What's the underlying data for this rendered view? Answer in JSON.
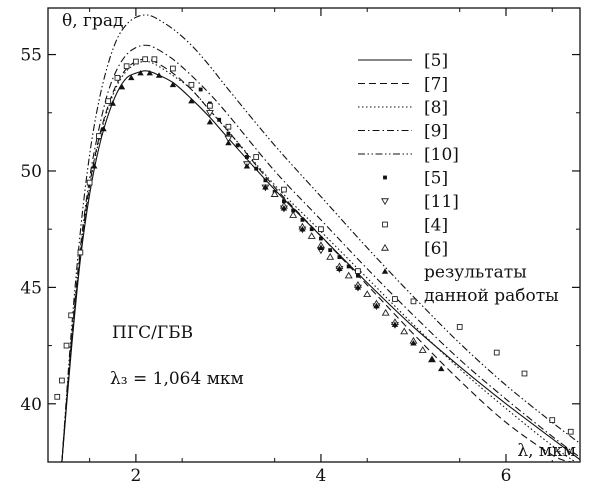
{
  "chart_data": {
    "type": "line",
    "ylabel": "θ, град",
    "xlabel": "λ, мкм",
    "xlim": [
      1.05,
      6.8
    ],
    "ylim": [
      37.5,
      57.0
    ],
    "x_ticks": [
      2,
      4,
      6
    ],
    "y_ticks": [
      40,
      45,
      50,
      55
    ],
    "x_tick_labels": [
      "2",
      "4",
      "6"
    ],
    "y_tick_labels": [
      "40",
      "45",
      "50",
      "55"
    ],
    "grid": false,
    "legend_position": "top-right",
    "annotations": [
      "ПГС/ГБВ",
      "λ₃ = 1,064 мкм"
    ],
    "series": [
      {
        "name": "[5]",
        "kind": "line",
        "dash": "solid",
        "x": [
          1.2,
          1.3,
          1.4,
          1.5,
          1.6,
          1.7,
          1.8,
          1.9,
          2.0,
          2.1,
          2.2,
          2.4,
          2.6,
          2.8,
          3.0,
          3.5,
          4.0,
          4.5,
          5.0,
          5.5,
          6.0,
          6.5,
          6.8
        ],
        "y": [
          37.5,
          42.2,
          46.2,
          49.0,
          51.0,
          52.4,
          53.4,
          54.0,
          54.2,
          54.3,
          54.2,
          53.8,
          53.1,
          52.3,
          51.4,
          49.2,
          47.2,
          45.2,
          43.3,
          41.6,
          40.0,
          38.5,
          37.6
        ]
      },
      {
        "name": "[7]",
        "kind": "line",
        "dash": "dashed",
        "x": [
          1.2,
          1.3,
          1.4,
          1.5,
          1.6,
          1.7,
          1.8,
          1.9,
          2.0,
          2.1,
          2.2,
          2.4,
          2.6,
          2.8,
          3.0,
          3.5,
          4.0,
          4.5,
          5.0,
          5.5,
          6.0,
          6.5,
          6.7
        ],
        "y": [
          37.5,
          42.5,
          46.5,
          49.4,
          51.4,
          52.8,
          53.8,
          54.4,
          54.7,
          54.8,
          54.7,
          54.2,
          53.5,
          52.6,
          51.7,
          49.3,
          47.2,
          45.1,
          43.0,
          41.0,
          39.2,
          37.8,
          37.5
        ]
      },
      {
        "name": "[8]",
        "kind": "line",
        "dash": "dotted",
        "x": [
          1.2,
          1.3,
          1.4,
          1.5,
          1.6,
          1.7,
          1.8,
          1.9,
          2.0,
          2.1,
          2.2,
          2.4,
          2.6,
          2.8,
          3.0,
          3.5,
          4.0,
          4.5,
          5.0,
          5.5,
          6.0,
          6.5,
          6.75
        ],
        "y": [
          37.5,
          42.4,
          46.4,
          49.3,
          51.3,
          52.7,
          53.7,
          54.3,
          54.6,
          54.7,
          54.6,
          54.1,
          53.5,
          52.6,
          51.7,
          49.4,
          47.4,
          45.4,
          43.4,
          41.5,
          39.8,
          38.2,
          37.5
        ]
      },
      {
        "name": "[9]",
        "kind": "line",
        "dash": "dashdot",
        "x": [
          1.2,
          1.3,
          1.4,
          1.5,
          1.6,
          1.7,
          1.8,
          1.9,
          2.0,
          2.1,
          2.2,
          2.4,
          2.6,
          2.8,
          3.0,
          3.5,
          4.0,
          4.5,
          5.0,
          5.5,
          6.0,
          6.5,
          6.8
        ],
        "y": [
          37.5,
          42.6,
          46.7,
          49.7,
          51.8,
          53.4,
          54.4,
          55.0,
          55.3,
          55.4,
          55.3,
          54.8,
          54.1,
          53.3,
          52.4,
          50.0,
          47.9,
          45.8,
          43.8,
          41.9,
          40.2,
          38.6,
          37.7
        ]
      },
      {
        "name": "[10]",
        "kind": "line",
        "dash": "dashdotdot",
        "x": [
          1.2,
          1.3,
          1.4,
          1.5,
          1.6,
          1.7,
          1.8,
          1.9,
          2.0,
          2.1,
          2.2,
          2.4,
          2.6,
          2.8,
          3.0,
          3.5,
          4.0,
          4.5,
          5.0,
          5.5,
          6.0,
          6.5,
          6.8
        ],
        "y": [
          37.5,
          43.0,
          47.4,
          50.7,
          53.0,
          54.6,
          55.7,
          56.3,
          56.6,
          56.7,
          56.6,
          56.1,
          55.4,
          54.5,
          53.5,
          51.1,
          48.9,
          46.7,
          44.6,
          42.6,
          40.8,
          39.2,
          38.3
        ]
      },
      {
        "name": "[5]",
        "kind": "marker",
        "marker": "filled-square",
        "x": [
          2.7,
          2.8,
          2.9,
          3.0,
          3.1,
          3.2,
          3.3,
          3.4,
          3.5,
          3.6,
          3.7,
          3.8,
          3.9,
          4.0,
          4.1,
          4.2,
          4.3,
          4.4
        ],
        "y": [
          53.5,
          52.9,
          52.2,
          51.6,
          51.1,
          50.6,
          50.1,
          49.6,
          49.1,
          48.7,
          48.3,
          47.9,
          47.5,
          47.1,
          46.6,
          46.3,
          45.9,
          45.5
        ]
      },
      {
        "name": "[11]",
        "kind": "marker",
        "marker": "open-triangle-down",
        "x": [
          2.8,
          3.0,
          3.2,
          3.4,
          3.6,
          3.8,
          4.0,
          4.2,
          4.4,
          4.6,
          4.8
        ],
        "y": [
          52.5,
          51.4,
          50.3,
          49.3,
          48.4,
          47.5,
          46.6,
          45.8,
          45.0,
          44.2,
          43.4
        ]
      },
      {
        "name": "[4]",
        "kind": "marker",
        "marker": "open-square",
        "x": [
          1.15,
          1.2,
          1.25,
          1.3,
          1.4,
          1.5,
          1.6,
          1.7,
          1.8,
          1.9,
          2.0,
          2.1,
          2.2,
          2.4,
          2.6,
          2.8,
          3.0,
          3.3,
          3.6,
          4.0,
          4.4,
          4.8,
          5.0,
          5.5,
          5.9,
          6.2,
          6.5,
          6.7
        ],
        "y": [
          40.3,
          41.0,
          42.5,
          43.8,
          46.5,
          49.5,
          51.5,
          53.0,
          54.0,
          54.5,
          54.7,
          54.8,
          54.8,
          54.4,
          53.7,
          52.8,
          51.9,
          50.6,
          49.2,
          47.5,
          45.7,
          44.5,
          44.4,
          43.3,
          42.2,
          41.3,
          39.3,
          38.8
        ]
      },
      {
        "name": "[6]",
        "kind": "marker",
        "marker": "open-triangle-up",
        "x": [
          3.5,
          3.6,
          3.7,
          3.8,
          3.9,
          4.0,
          4.1,
          4.2,
          4.3,
          4.4,
          4.5,
          4.6,
          4.7,
          4.8,
          4.9,
          5.0,
          5.1,
          5.2
        ],
        "y": [
          49.0,
          48.5,
          48.1,
          47.6,
          47.2,
          46.8,
          46.3,
          45.9,
          45.5,
          45.1,
          44.7,
          44.3,
          43.9,
          43.5,
          43.1,
          42.7,
          42.3,
          41.9
        ]
      },
      {
        "name": "результаты данной работы",
        "kind": "marker",
        "marker": "filled-triangle-up",
        "x": [
          1.55,
          1.65,
          1.75,
          1.85,
          1.95,
          2.05,
          2.15,
          2.25,
          2.4,
          2.6,
          2.8,
          3.0,
          3.2,
          3.4,
          3.6,
          3.8,
          4.0,
          4.2,
          4.4,
          4.6,
          4.8,
          5.0,
          5.2,
          5.3
        ],
        "y": [
          50.2,
          51.8,
          52.9,
          53.6,
          54.0,
          54.2,
          54.2,
          54.1,
          53.7,
          53.0,
          52.1,
          51.2,
          50.2,
          49.3,
          48.4,
          47.5,
          46.7,
          45.8,
          45.0,
          44.2,
          43.4,
          42.6,
          41.9,
          41.5
        ]
      }
    ],
    "legend": {
      "items": [
        "[5]",
        "[7]",
        "[8]",
        "[9]",
        "[10]",
        "[5]",
        "[11]",
        "[4]",
        "[6]",
        "результаты",
        "данной работы"
      ]
    }
  }
}
